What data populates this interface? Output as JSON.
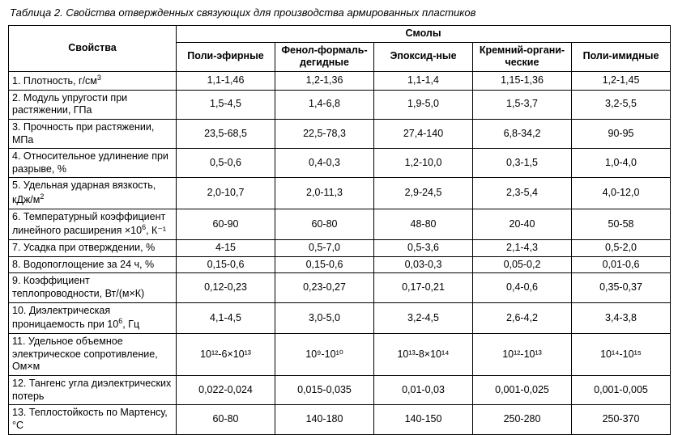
{
  "caption": "Таблица 2. Свойства отвержденных связующих для производства армированных пластиков",
  "header": {
    "properties": "Свойства",
    "group": "Смолы",
    "cols": [
      "Поли-эфирные",
      "Фенол-формаль-дегидные",
      "Эпоксид-ные",
      "Кремний-органи-ческие",
      "Поли-имидные"
    ]
  },
  "rows": [
    {
      "prop_prefix": "1.    Плотность, г/см",
      "prop_sup": "3",
      "prop_suffix": "",
      "v": [
        "1,1-1,46",
        "1,2-1,36",
        "1,1-1,4",
        "1,15-1,36",
        "1,2-1,45"
      ]
    },
    {
      "prop_prefix": "2.    Модуль упругости при растяжении, ГПа",
      "prop_sup": "",
      "prop_suffix": "",
      "v": [
        "1,5-4,5",
        "1,4-6,8",
        "1,9-5,0",
        "1,5-3,7",
        "3,2-5,5"
      ]
    },
    {
      "prop_prefix": "3.    Прочность при растяжении, МПа",
      "prop_sup": "",
      "prop_suffix": "",
      "v": [
        "23,5-68,5",
        "22,5-78,3",
        "27,4-140",
        "6,8-34,2",
        "90-95"
      ]
    },
    {
      "prop_prefix": "4.    Относительное удлинение при разрыве, %",
      "prop_sup": "",
      "prop_suffix": "",
      "v": [
        "0,5-0,6",
        "0,4-0,3",
        "1,2-10,0",
        "0,3-1,5",
        "1,0-4,0"
      ]
    },
    {
      "prop_prefix": "5.    Удельная ударная вязкость, кДж/м",
      "prop_sup": "2",
      "prop_suffix": "",
      "v": [
        "2,0-10,7",
        "2,0-11,3",
        "2,9-24,5",
        "2,3-5,4",
        "4,0-12,0"
      ]
    },
    {
      "prop_prefix": "6.    Температурный коэффициент линейного расширения ×10",
      "prop_sup": "6",
      "prop_suffix": ", К⁻¹",
      "v": [
        "60-90",
        "60-80",
        "48-80",
        "20-40",
        "50-58"
      ]
    },
    {
      "prop_prefix": "7.    Усадка при отверждении, %",
      "prop_sup": "",
      "prop_suffix": "",
      "v": [
        "4-15",
        "0,5-7,0",
        "0,5-3,6",
        "2,1-4,3",
        "0,5-2,0"
      ]
    },
    {
      "prop_prefix": "8.    Водопоглощение за 24 ч, %",
      "prop_sup": "",
      "prop_suffix": "",
      "v": [
        "0,15-0,6",
        "0,15-0,6",
        "0,03-0,3",
        "0,05-0,2",
        "0,01-0,6"
      ]
    },
    {
      "prop_prefix": "9.    Коэффициент теплопроводности, Вт/(м×К)",
      "prop_sup": "",
      "prop_suffix": "",
      "v": [
        "0,12-0,23",
        "0,23-0,27",
        "0,17-0,21",
        "0,4-0,6",
        "0,35-0,37"
      ]
    },
    {
      "prop_prefix": "10.  Диэлектрическая проницаемость при 10",
      "prop_sup": "6",
      "prop_suffix": ", Гц",
      "v": [
        "4,1-4,5",
        "3,0-5,0",
        "3,2-4,5",
        "2,6-4,2",
        "3,4-3,8"
      ]
    },
    {
      "prop_prefix": "11.  Удельное объемное электрическое сопротивление, Ом×м",
      "prop_sup": "",
      "prop_suffix": "",
      "v": [
        "10¹²-6×10¹³",
        "10⁹-10¹⁰",
        "10¹³-8×10¹⁴",
        "10¹²-10¹³",
        "10¹⁴-10¹⁵"
      ]
    },
    {
      "prop_prefix": "12.  Тангенс угла диэлектрических потерь",
      "prop_sup": "",
      "prop_suffix": "",
      "v": [
        "0,022-0,024",
        "0,015-0,035",
        "0,01-0,03",
        "0,001-0,025",
        "0,001-0,005"
      ]
    },
    {
      "prop_prefix": "13.  Теплостойкость по Мартенсу, °С",
      "prop_sup": "",
      "prop_suffix": "",
      "v": [
        "60-80",
        "140-180",
        "140-150",
        "250-280",
        "250-370"
      ]
    }
  ]
}
